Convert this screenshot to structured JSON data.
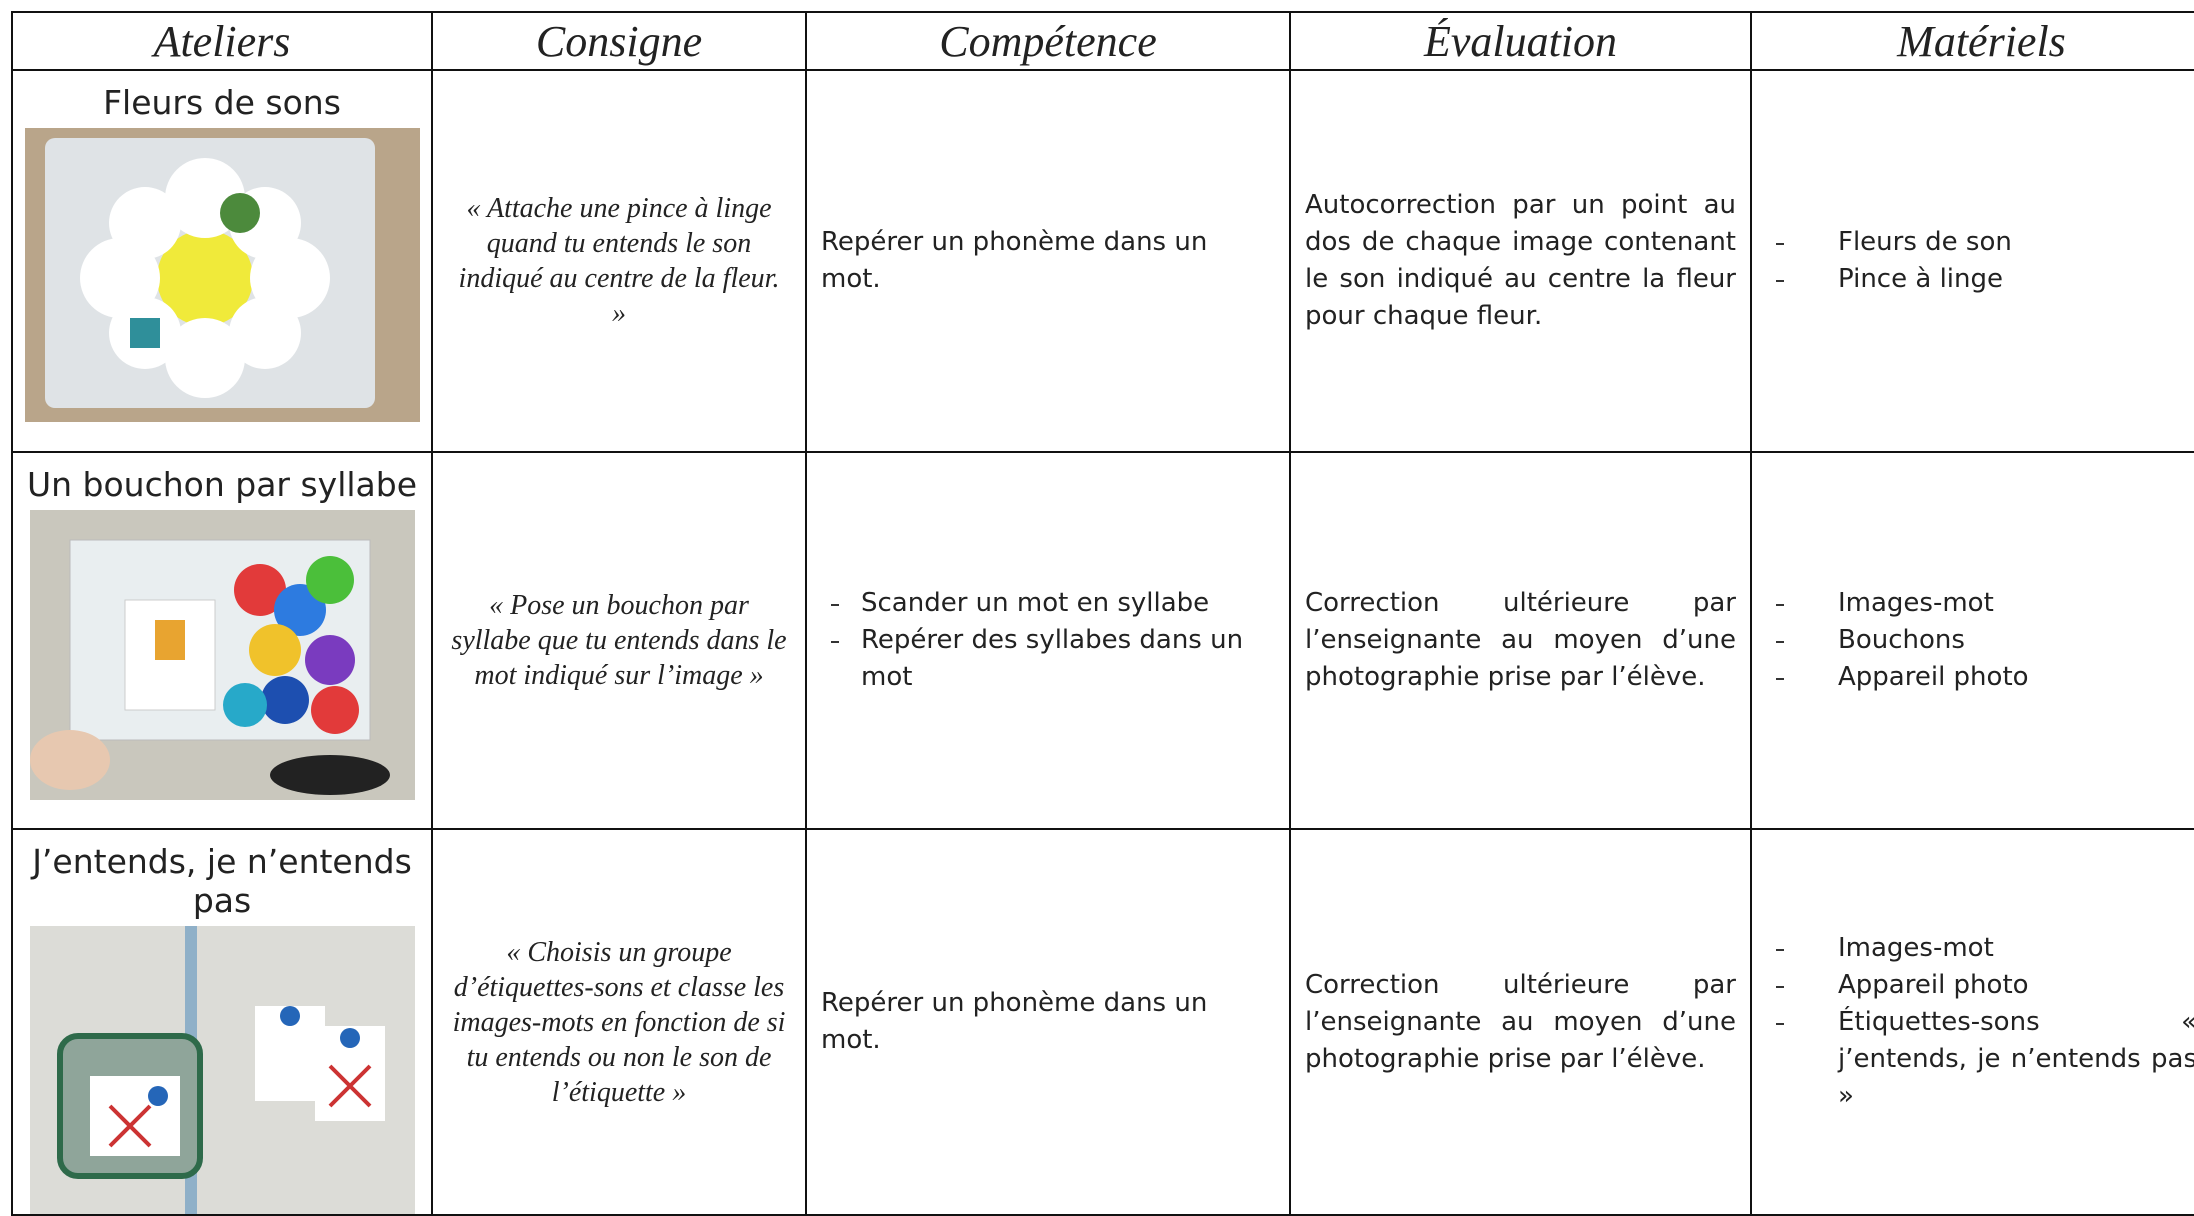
{
  "table": {
    "headers": [
      "Ateliers",
      "Consigne",
      "Compétence",
      "Évaluation",
      "Matériels"
    ],
    "rows": [
      {
        "atelier": "Fleurs de sons",
        "consigne": "« Attache une pince à linge quand tu entends le son indiqué au centre de la fleur. »",
        "competence": [
          "Repérer un phonème dans un mot."
        ],
        "evaluation": "Autocorrection par un point au dos de chaque image contenant le son indiqué au centre la fleur pour chaque fleur.",
        "materiels": [
          "Fleurs de son",
          "Pince à linge"
        ]
      },
      {
        "atelier": "Un bouchon par syllabe",
        "consigne": "« Pose un bouchon par syllabe que tu entends dans le mot indiqué sur l’image »",
        "competence": [
          "Scander un mot en syllabe",
          "Repérer des syllabes dans un mot"
        ],
        "evaluation": "Correction ultérieure par l’enseignante au moyen d’une photographie prise par l’élève.",
        "materiels": [
          "Images-mot",
          "Bouchons",
          "Appareil photo"
        ]
      },
      {
        "atelier": "J’entends, je n’entends pas",
        "consigne": "« Choisis un groupe d’étiquettes-sons et classe les images-mots en fonction de si tu entends ou non le son de l’étiquette »",
        "competence": [
          "Repérer un phonème dans un mot."
        ],
        "evaluation": "Correction ultérieure par l’enseignante au moyen d’une photographie prise par l’élève.",
        "materiels": [
          "Images-mot",
          "Appareil photo",
          "Étiquettes-sons « j’entends, je n’entends pas »"
        ]
      }
    ]
  }
}
